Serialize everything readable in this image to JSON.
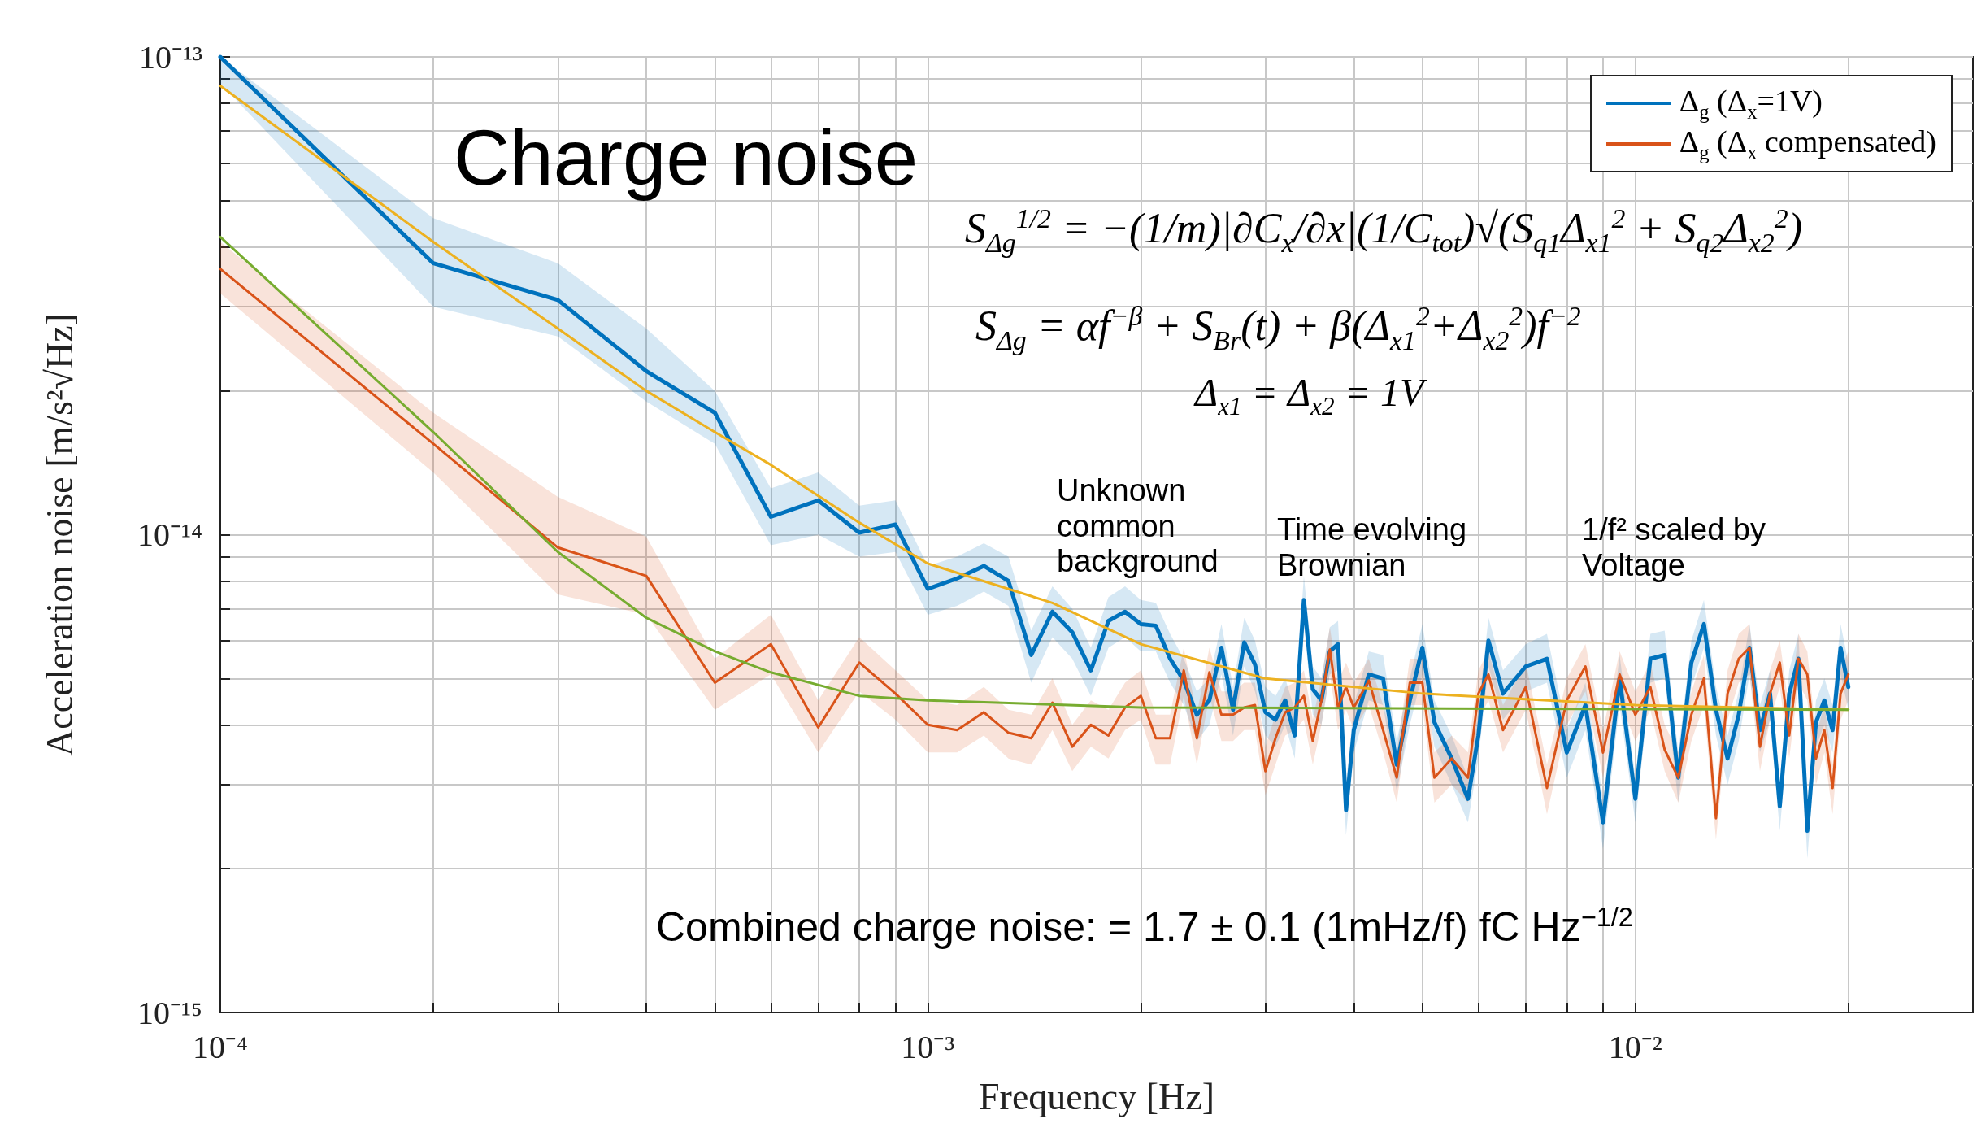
{
  "chart_data": {
    "type": "line",
    "title": "Charge noise",
    "xlabel": "Frequency [Hz]",
    "ylabel": "Acceleration noise [m/s²√Hz]",
    "x": [
      0.0001,
      0.0002,
      0.0003,
      0.0004,
      0.0005,
      0.0006,
      0.0007,
      0.0008,
      0.0009,
      0.001,
      0.0011,
      0.0012,
      0.0013,
      0.0014,
      0.0015,
      0.0016,
      0.0017,
      0.0018,
      0.0019,
      0.002,
      0.0021,
      0.0022,
      0.0023,
      0.0024,
      0.0025,
      0.0026,
      0.0027,
      0.0028,
      0.0029,
      0.003,
      0.0031,
      0.0032,
      0.0033,
      0.0034,
      0.0035,
      0.0036,
      0.0037,
      0.0038,
      0.0039,
      0.004,
      0.0042,
      0.0044,
      0.0046,
      0.0048,
      0.005,
      0.0052,
      0.0055,
      0.0058,
      0.006,
      0.0062,
      0.0065,
      0.007,
      0.0075,
      0.008,
      0.0085,
      0.009,
      0.0095,
      0.01,
      0.0105,
      0.011,
      0.0115,
      0.012,
      0.0125,
      0.013,
      0.0135,
      0.014,
      0.0145,
      0.015,
      0.0155,
      0.016,
      0.0165,
      0.017,
      0.0175,
      0.018,
      0.0185,
      0.019,
      0.0195,
      0.02
    ],
    "series": [
      {
        "name": "Δ$_{g}$ (Δ$_{x}$=1V)",
        "color": "#0072bd",
        "values": [
          1e-13,
          3.7e-14,
          3.1e-14,
          2.2e-14,
          1.8e-14,
          1.09e-14,
          1.18e-14,
          1.01e-14,
          1.05e-14,
          7.7e-15,
          8.1e-15,
          8.6e-15,
          8e-15,
          5.6e-15,
          6.9e-15,
          6.25e-15,
          5.2e-15,
          6.6e-15,
          6.9e-15,
          6.5e-15,
          6.45e-15,
          5.5e-15,
          4.95e-15,
          4.2e-15,
          4.5e-15,
          5.8e-15,
          4.3e-15,
          5.95e-15,
          5.35e-15,
          4.25e-15,
          4.1e-15,
          4.5e-15,
          3.8e-15,
          7.3e-15,
          4.75e-15,
          4.5e-15,
          5.7e-15,
          5.9e-15,
          2.65e-15,
          3.9e-15,
          5.1e-15,
          5e-15,
          3.3e-15,
          4.5e-15,
          5.8e-15,
          4.05e-15,
          3.4e-15,
          2.8e-15,
          3.8e-15,
          6e-15,
          4.65e-15,
          5.3e-15,
          5.5e-15,
          3.5e-15,
          4.4e-15,
          2.5e-15,
          5e-15,
          2.8e-15,
          5.5e-15,
          5.6e-15,
          3.1e-15,
          5.4e-15,
          6.5e-15,
          4.3e-15,
          3.4e-15,
          4.2e-15,
          5.8e-15,
          3.9e-15,
          4.65e-15,
          2.7e-15,
          4.65e-15,
          5.5e-15,
          2.4e-15,
          4.05e-15,
          4.5e-15,
          3.9e-15,
          5.8e-15,
          4.8e-15
        ],
        "lower": [
          8.8e-14,
          3e-14,
          2.6e-14,
          1.9e-14,
          1.55e-14,
          9.5e-15,
          1e-14,
          9e-15,
          9.2e-15,
          6.8e-15,
          7.1e-15,
          7.6e-15,
          7.1e-15,
          4.9e-15,
          6.1e-15,
          5.5e-15,
          4.6e-15,
          5.8e-15,
          6.1e-15,
          5.7e-15,
          5.7e-15,
          4.9e-15,
          4.4e-15,
          3.7e-15,
          4e-15,
          5.1e-15,
          3.8e-15,
          5.3e-15,
          4.7e-15,
          3.8e-15,
          3.6e-15,
          4e-15,
          3.4e-15,
          6.5e-15,
          4.2e-15,
          4e-15,
          5.1e-15,
          5.2e-15,
          2.35e-15,
          3.5e-15,
          4.5e-15,
          4.4e-15,
          2.9e-15,
          4e-15,
          5.1e-15,
          3.6e-15,
          3e-15,
          2.5e-15,
          3.4e-15,
          5.3e-15,
          4.1e-15,
          4.7e-15,
          4.9e-15,
          3.1e-15,
          3.9e-15,
          2.2e-15,
          4.4e-15,
          2.5e-15,
          4.9e-15,
          5e-15,
          2.75e-15,
          4.8e-15,
          5.8e-15,
          3.8e-15,
          3e-15,
          3.7e-15,
          5.1e-15,
          3.5e-15,
          4.1e-15,
          2.4e-15,
          4.1e-15,
          4.9e-15,
          2.1e-15,
          3.6e-15,
          4e-15,
          3.5e-15,
          5.1e-15,
          4.3e-15
        ],
        "upper": [
          1e-13,
          4.6e-14,
          3.7e-14,
          2.7e-14,
          2e-14,
          1.25e-14,
          1.35e-14,
          1.15e-14,
          1.18e-14,
          8.6e-15,
          9e-15,
          9.6e-15,
          9e-15,
          6.3e-15,
          7.8e-15,
          7e-15,
          5.8e-15,
          7.4e-15,
          7.8e-15,
          7.3e-15,
          7.2e-15,
          6.2e-15,
          5.5e-15,
          4.7e-15,
          5e-15,
          6.5e-15,
          4.8e-15,
          6.7e-15,
          6e-15,
          4.8e-15,
          4.6e-15,
          5e-15,
          4.3e-15,
          8.2e-15,
          5.3e-15,
          5e-15,
          6.4e-15,
          6.6e-15,
          3e-15,
          4.4e-15,
          5.7e-15,
          5.6e-15,
          3.7e-15,
          5e-15,
          6.5e-15,
          4.5e-15,
          3.8e-15,
          3.1e-15,
          4.3e-15,
          6.7e-15,
          5.2e-15,
          5.9e-15,
          6.2e-15,
          3.9e-15,
          4.9e-15,
          2.8e-15,
          5.6e-15,
          3.1e-15,
          6.2e-15,
          6.3e-15,
          3.5e-15,
          6e-15,
          7.3e-15,
          4.8e-15,
          3.8e-15,
          4.7e-15,
          6.5e-15,
          4.4e-15,
          5.2e-15,
          3e-15,
          5.2e-15,
          6.2e-15,
          2.7e-15,
          4.5e-15,
          5e-15,
          4.4e-15,
          6.5e-15,
          5.4e-15
        ]
      },
      {
        "name": "Δ$_{g}$ (Δ$_{x}$ compensated)",
        "color": "#d95319",
        "values": [
          3.6e-14,
          1.55e-14,
          9.4e-15,
          8.2e-15,
          4.9e-15,
          5.9e-15,
          3.95e-15,
          5.4e-15,
          4.65e-15,
          4e-15,
          3.9e-15,
          4.25e-15,
          3.85e-15,
          3.75e-15,
          4.45e-15,
          3.6e-15,
          4e-15,
          3.8e-15,
          4.35e-15,
          4.6e-15,
          3.75e-15,
          3.75e-15,
          5.2e-15,
          3.75e-15,
          5.15e-15,
          4.2e-15,
          4.2e-15,
          4.35e-15,
          4.4e-15,
          3.2e-15,
          3.75e-15,
          4.25e-15,
          4.35e-15,
          4.6e-15,
          3.7e-15,
          4.5e-15,
          5.75e-15,
          4.35e-15,
          4.8e-15,
          4.35e-15,
          4.95e-15,
          3.9e-15,
          3.1e-15,
          4.9e-15,
          4.9e-15,
          3.1e-15,
          3.4e-15,
          3.1e-15,
          4.65e-15,
          5.1e-15,
          3.9e-15,
          4.8e-15,
          2.95e-15,
          4.5e-15,
          5.3e-15,
          3.5e-15,
          5.1e-15,
          4.2e-15,
          4.8e-15,
          3.55e-15,
          3.1e-15,
          4.2e-15,
          5e-15,
          2.55e-15,
          4.65e-15,
          5.5e-15,
          5.8e-15,
          3.6e-15,
          4.65e-15,
          5.4e-15,
          3.8e-15,
          5.5e-15,
          5.1e-15,
          3.4e-15,
          3.9e-15,
          2.95e-15,
          4.65e-15,
          5.1e-15
        ],
        "lower": [
          3.2e-14,
          1.35e-14,
          7.5e-15,
          6.8e-15,
          4.3e-15,
          5.1e-15,
          3.5e-15,
          4.7e-15,
          4.1e-15,
          3.5e-15,
          3.5e-15,
          3.8e-15,
          3.4e-15,
          3.3e-15,
          3.9e-15,
          3.2e-15,
          3.6e-15,
          3.4e-15,
          3.9e-15,
          4.1e-15,
          3.3e-15,
          3.3e-15,
          4.6e-15,
          3.3e-15,
          4.6e-15,
          3.7e-15,
          3.7e-15,
          3.9e-15,
          3.9e-15,
          2.85e-15,
          3.3e-15,
          3.8e-15,
          3.9e-15,
          4.1e-15,
          3.3e-15,
          4e-15,
          5.1e-15,
          3.9e-15,
          4.3e-15,
          3.9e-15,
          4.4e-15,
          3.5e-15,
          2.75e-15,
          4.4e-15,
          4.4e-15,
          2.75e-15,
          3e-15,
          2.75e-15,
          4.1e-15,
          4.5e-15,
          3.5e-15,
          4.3e-15,
          2.6e-15,
          4e-15,
          4.7e-15,
          3.1e-15,
          4.5e-15,
          3.7e-15,
          4.3e-15,
          3.2e-15,
          2.75e-15,
          3.7e-15,
          4.4e-15,
          2.3e-15,
          4.1e-15,
          4.9e-15,
          5.1e-15,
          3.2e-15,
          4.1e-15,
          4.8e-15,
          3.4e-15,
          4.9e-15,
          4.5e-15,
          3e-15,
          3.5e-15,
          2.6e-15,
          4.1e-15,
          4.5e-15
        ],
        "upper": [
          4.1e-14,
          1.8e-14,
          1.2e-14,
          9.9e-15,
          5.5e-15,
          6.8e-15,
          4.5e-15,
          6.1e-15,
          5.2e-15,
          4.5e-15,
          4.4e-15,
          4.8e-15,
          4.3e-15,
          4.2e-15,
          5e-15,
          4e-15,
          4.5e-15,
          4.3e-15,
          4.9e-15,
          5.2e-15,
          4.2e-15,
          4.2e-15,
          5.8e-15,
          4.2e-15,
          5.8e-15,
          4.7e-15,
          4.7e-15,
          4.9e-15,
          4.9e-15,
          3.6e-15,
          4.2e-15,
          4.8e-15,
          4.9e-15,
          5.2e-15,
          4.1e-15,
          5e-15,
          6.4e-15,
          4.9e-15,
          5.4e-15,
          4.9e-15,
          5.5e-15,
          4.4e-15,
          3.5e-15,
          5.5e-15,
          5.5e-15,
          3.5e-15,
          3.8e-15,
          3.5e-15,
          5.2e-15,
          5.7e-15,
          4.4e-15,
          5.4e-15,
          3.3e-15,
          5e-15,
          5.9e-15,
          3.9e-15,
          5.7e-15,
          4.7e-15,
          5.4e-15,
          4e-15,
          3.5e-15,
          4.7e-15,
          5.6e-15,
          2.85e-15,
          5.2e-15,
          6.2e-15,
          6.5e-15,
          4e-15,
          5.2e-15,
          6e-15,
          4.3e-15,
          6.2e-15,
          5.7e-15,
          3.8e-15,
          4.4e-15,
          3.3e-15,
          5.2e-15,
          5.7e-15
        ]
      },
      {
        "type": "line",
        "color": "#edb120",
        "x": [
          0.0001,
          0.0002,
          0.0003,
          0.0004,
          0.0005,
          0.0006,
          0.0008,
          0.001,
          0.0015,
          0.002,
          0.003,
          0.005,
          0.01,
          0.02
        ],
        "values": [
          8.7e-14,
          4.1e-14,
          2.7e-14,
          2e-14,
          1.64e-14,
          1.4e-14,
          1.06e-14,
          8.7e-15,
          7.2e-15,
          5.9e-15,
          5e-15,
          4.65e-15,
          4.4e-15,
          4.3e-15
        ]
      },
      {
        "type": "line",
        "color": "#77ac30",
        "x": [
          0.0001,
          0.0002,
          0.0003,
          0.0004,
          0.0005,
          0.0006,
          0.0008,
          0.001,
          0.002,
          0.02
        ],
        "values": [
          4.2e-14,
          1.64e-14,
          9.2e-15,
          6.7e-15,
          5.7e-15,
          5.15e-15,
          4.6e-15,
          4.5e-15,
          4.35e-15,
          4.3e-15
        ]
      }
    ],
    "xlim": [
      0.0001,
      0.03
    ],
    "ylim": [
      1e-15,
      1e-13
    ],
    "xticks": [
      {
        "value": 0.0001,
        "label": "10⁻⁴"
      },
      {
        "value": 0.0002,
        "label": null
      },
      {
        "value": 0.0003,
        "label": null
      },
      {
        "value": 0.0004,
        "label": null
      },
      {
        "value": 0.0005,
        "label": null
      },
      {
        "value": 0.0006,
        "label": null
      },
      {
        "value": 0.0007,
        "label": null
      },
      {
        "value": 0.0008,
        "label": null
      },
      {
        "value": 0.0009,
        "label": null
      },
      {
        "value": 0.001,
        "label": "10⁻³"
      },
      {
        "value": 0.002,
        "label": null
      },
      {
        "value": 0.003,
        "label": null
      },
      {
        "value": 0.004,
        "label": null
      },
      {
        "value": 0.005,
        "label": null
      },
      {
        "value": 0.006,
        "label": null
      },
      {
        "value": 0.007,
        "label": null
      },
      {
        "value": 0.008,
        "label": null
      },
      {
        "value": 0.009,
        "label": null
      },
      {
        "value": 0.01,
        "label": "10⁻²"
      },
      {
        "value": 0.02,
        "label": null
      }
    ],
    "yticks": [
      {
        "value": 1e-15,
        "label": "10⁻¹⁵"
      },
      {
        "value": 2e-15,
        "label": null
      },
      {
        "value": 3e-15,
        "label": null
      },
      {
        "value": 4e-15,
        "label": null
      },
      {
        "value": 5e-15,
        "label": null
      },
      {
        "value": 6e-15,
        "label": null
      },
      {
        "value": 7e-15,
        "label": null
      },
      {
        "value": 8e-15,
        "label": null
      },
      {
        "value": 9e-15,
        "label": null
      },
      {
        "value": 1e-14,
        "label": "10⁻¹⁴"
      },
      {
        "value": 2e-14,
        "label": null
      },
      {
        "value": 3e-14,
        "label": null
      },
      {
        "value": 4e-14,
        "label": null
      },
      {
        "value": 5e-14,
        "label": null
      },
      {
        "value": 6e-14,
        "label": null
      },
      {
        "value": 7e-14,
        "label": null
      },
      {
        "value": 8e-14,
        "label": null
      },
      {
        "value": 9e-14,
        "label": null
      },
      {
        "value": 1e-13,
        "label": "10⁻¹³"
      }
    ],
    "log": "xy",
    "grid": true,
    "legend": "top right",
    "marker": "none",
    "line_style": "solid",
    "annotations": [
      "S$_{Δg}$$^{1/2}$ = −(1/m)|∂C$_{x}$/∂x|(1/C$_{tot}$)√(S$_{q1}$Δ$_{x1}$$^{2}$ + S$_{q2}$Δ$_{x2}$$^{2}$)",
      "S$_{Δg}$ = αf$^{−β}$ + S$_{Br}$(t) + β(Δ$_{x1}$$^{2}$+Δ$_{x2}$$^{2}$)f$^{−2}$",
      "Δ$_{x1}$ = Δ$_{x2}$ = 1V",
      "Unknown common background",
      "Time evolving Brownian",
      "1/f² scaled by Voltage",
      "Combined charge noise:  = 1.7 ± 0.1 (1mHz/f) fC Hz$^{−1/2}$"
    ]
  }
}
